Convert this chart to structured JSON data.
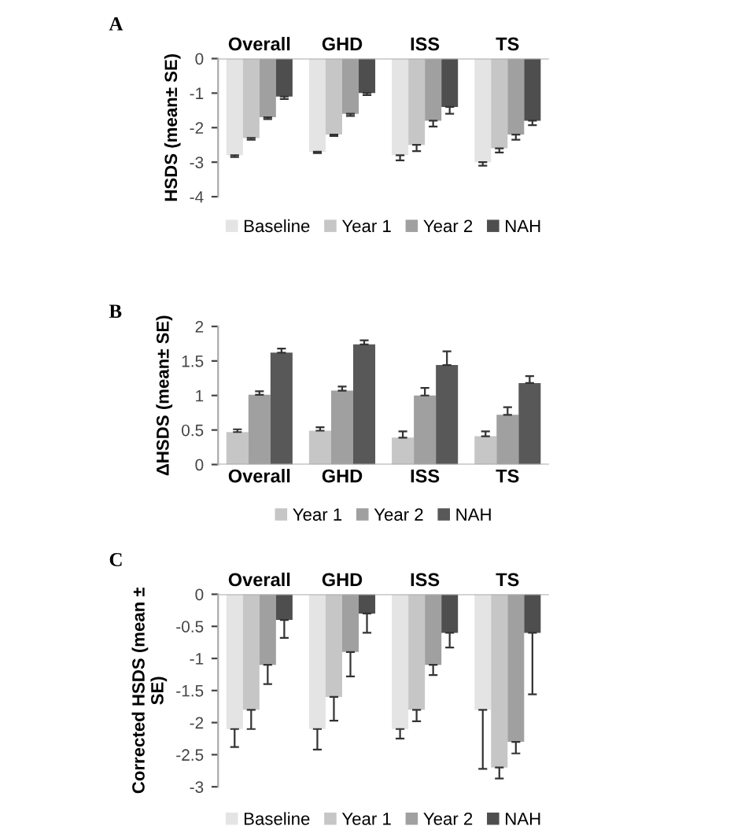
{
  "chart_data": [
    {
      "type": "bar",
      "title": "A",
      "ylabel": "HSDS (mean± SE)",
      "categories": [
        "Overall",
        "GHD",
        "ISS",
        "TS"
      ],
      "ylim": [
        -4,
        0
      ],
      "yticks": [
        -4,
        -3,
        -2,
        -1,
        0
      ],
      "legend": "bottom",
      "grid": false,
      "series": [
        {
          "name": "Baseline",
          "color": "#e4e4e4",
          "values": [
            -2.8,
            -2.7,
            -2.8,
            -3.0
          ],
          "errors": [
            [
              -2.85,
              -2.8
            ],
            [
              -2.74,
              -2.7
            ],
            [
              -2.95,
              -2.8
            ],
            [
              -3.1,
              -3.0
            ]
          ]
        },
        {
          "name": "Year 1",
          "color": "#c6c6c6",
          "values": [
            -2.3,
            -2.2,
            -2.5,
            -2.6
          ],
          "errors": [
            [
              -2.35,
              -2.3
            ],
            [
              -2.24,
              -2.2
            ],
            [
              -2.68,
              -2.5
            ],
            [
              -2.72,
              -2.6
            ]
          ]
        },
        {
          "name": "Year 2",
          "color": "#a0a0a0",
          "values": [
            -1.7,
            -1.6,
            -1.8,
            -2.2
          ],
          "errors": [
            [
              -1.75,
              -1.7
            ],
            [
              -1.66,
              -1.6
            ],
            [
              -1.97,
              -1.8
            ],
            [
              -2.35,
              -2.2
            ]
          ]
        },
        {
          "name": "NAH",
          "color": "#4e4e4e",
          "values": [
            -1.1,
            -1.0,
            -1.4,
            -1.8
          ],
          "errors": [
            [
              -1.17,
              -1.1
            ],
            [
              -1.06,
              -1.0
            ],
            [
              -1.6,
              -1.4
            ],
            [
              -1.93,
              -1.8
            ]
          ]
        }
      ]
    },
    {
      "type": "bar",
      "title": "B",
      "ylabel": "ΔHSDS (mean± SE)",
      "categories": [
        "Overall",
        "GHD",
        "ISS",
        "TS"
      ],
      "ylim": [
        0,
        2
      ],
      "yticks": [
        0,
        0.5,
        1,
        1.5,
        2
      ],
      "legend": "bottom",
      "grid": false,
      "series": [
        {
          "name": "Year 1",
          "color": "#c6c6c6",
          "values": [
            0.47,
            0.49,
            0.39,
            0.41
          ],
          "errors": [
            [
              0.47,
              0.51
            ],
            [
              0.49,
              0.54
            ],
            [
              0.39,
              0.48
            ],
            [
              0.41,
              0.48
            ]
          ]
        },
        {
          "name": "Year 2",
          "color": "#a0a0a0",
          "values": [
            1.01,
            1.07,
            1.0,
            0.72
          ],
          "errors": [
            [
              1.01,
              1.06
            ],
            [
              1.07,
              1.13
            ],
            [
              1.0,
              1.11
            ],
            [
              0.72,
              0.83
            ]
          ]
        },
        {
          "name": "NAH",
          "color": "#585858",
          "values": [
            1.62,
            1.74,
            1.44,
            1.18
          ],
          "errors": [
            [
              1.62,
              1.68
            ],
            [
              1.74,
              1.8
            ],
            [
              1.44,
              1.64
            ],
            [
              1.18,
              1.28
            ]
          ]
        }
      ]
    },
    {
      "type": "bar",
      "title": "C",
      "ylabel": "Corrected HSDS (mean ±\nSE)",
      "categories": [
        "Overall",
        "GHD",
        "ISS",
        "TS"
      ],
      "ylim": [
        -3,
        0
      ],
      "yticks": [
        -3,
        -2.5,
        -2,
        -1.5,
        -1,
        -0.5,
        0
      ],
      "legend": "bottom",
      "grid": false,
      "series": [
        {
          "name": "Baseline",
          "color": "#e4e4e4",
          "values": [
            -2.1,
            -2.1,
            -2.1,
            -1.8
          ],
          "errors": [
            [
              -2.38,
              -2.1
            ],
            [
              -2.42,
              -2.1
            ],
            [
              -2.25,
              -2.1
            ],
            [
              -2.72,
              -1.8
            ]
          ]
        },
        {
          "name": "Year 1",
          "color": "#c6c6c6",
          "values": [
            -1.8,
            -1.6,
            -1.8,
            -2.7
          ],
          "errors": [
            [
              -2.1,
              -1.8
            ],
            [
              -1.97,
              -1.6
            ],
            [
              -1.98,
              -1.8
            ],
            [
              -2.87,
              -2.7
            ]
          ]
        },
        {
          "name": "Year 2",
          "color": "#a0a0a0",
          "values": [
            -1.1,
            -0.9,
            -1.1,
            -2.3
          ],
          "errors": [
            [
              -1.4,
              -1.1
            ],
            [
              -1.28,
              -0.9
            ],
            [
              -1.26,
              -1.1
            ],
            [
              -2.48,
              -2.3
            ]
          ]
        },
        {
          "name": "NAH",
          "color": "#4e4e4e",
          "values": [
            -0.4,
            -0.3,
            -0.6,
            -0.6
          ],
          "errors": [
            [
              -0.68,
              -0.4
            ],
            [
              -0.6,
              -0.3
            ],
            [
              -0.83,
              -0.6
            ],
            [
              -1.56,
              -0.6
            ]
          ]
        }
      ]
    }
  ]
}
